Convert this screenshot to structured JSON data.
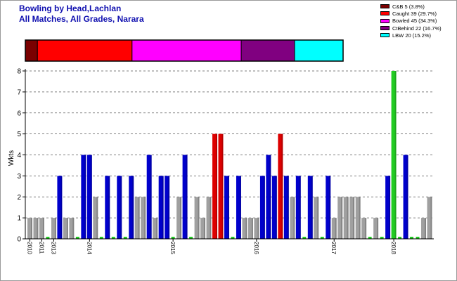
{
  "colors": {
    "caught_bowled": "#7a0000",
    "caught": "#ff0000",
    "bowled": "#ff00ff",
    "ctbehind": "#800080",
    "lbw": "#00ffff",
    "bar_blue": "#0000cc",
    "bar_gray": "#a0a0a0",
    "bar_red": "#dd0000",
    "bar_green": "#22cc22",
    "title": "#1010b0"
  },
  "chart_data": {
    "type": "bar",
    "title": "Bowling by Head,Lachlan",
    "subtitle": "All Matches, All Grades, Narara",
    "ylabel": "Wkts",
    "xlabel": "",
    "ylim": [
      0,
      8
    ],
    "yticks": [
      "0",
      "1",
      "2",
      "3",
      "4",
      "5",
      "6",
      "7",
      "8"
    ],
    "grid": true,
    "legend_position": "top-right",
    "x_tick_labels": [
      "2010",
      "2011",
      "2013",
      "2014",
      "2015",
      "2016",
      "2017",
      "2018"
    ],
    "legend": [
      {
        "label": "C&B 5 (3.8%)",
        "color": "#7a0000",
        "value": 5,
        "percent": 3.8
      },
      {
        "label": "Caught 39 (29.7%)",
        "color": "#ff0000",
        "value": 39,
        "percent": 29.7
      },
      {
        "label": "Bowled 45 (34.3%)",
        "color": "#ff00ff",
        "value": 45,
        "percent": 34.3
      },
      {
        "label": "CtBehind 22 (16.7%)",
        "color": "#800080",
        "value": 22,
        "percent": 16.7
      },
      {
        "label": "LBW 20 (15.2%)",
        "color": "#00ffff",
        "value": 20,
        "percent": 15.2
      }
    ],
    "series": [
      {
        "values": [
          1,
          1,
          1,
          0,
          1,
          3,
          1,
          1,
          0,
          4,
          4,
          2,
          0,
          3,
          0,
          3,
          0,
          3,
          2,
          2,
          4,
          1,
          3,
          3,
          0,
          2,
          4,
          0,
          2,
          1,
          2,
          5,
          5,
          3,
          0,
          3,
          1,
          1,
          1,
          3,
          4,
          3,
          5,
          3,
          2,
          3,
          0,
          3,
          2,
          0,
          3,
          1,
          2,
          2,
          2,
          2,
          1,
          0,
          1,
          0,
          3,
          8,
          0,
          4,
          0,
          0,
          1,
          2
        ],
        "colors": [
          "g",
          "g",
          "g",
          "n",
          "g",
          "b",
          "g",
          "g",
          "n",
          "b",
          "b",
          "g",
          "n",
          "b",
          "n",
          "b",
          "n",
          "b",
          "g",
          "g",
          "b",
          "g",
          "b",
          "b",
          "n",
          "g",
          "b",
          "n",
          "g",
          "g",
          "g",
          "r",
          "r",
          "b",
          "n",
          "b",
          "g",
          "g",
          "g",
          "b",
          "b",
          "b",
          "r",
          "b",
          "g",
          "b",
          "n",
          "b",
          "g",
          "n",
          "b",
          "g",
          "g",
          "g",
          "g",
          "g",
          "g",
          "n",
          "g",
          "n",
          "b",
          "G",
          "n",
          "b",
          "n",
          "n",
          "g",
          "g"
        ]
      }
    ]
  }
}
